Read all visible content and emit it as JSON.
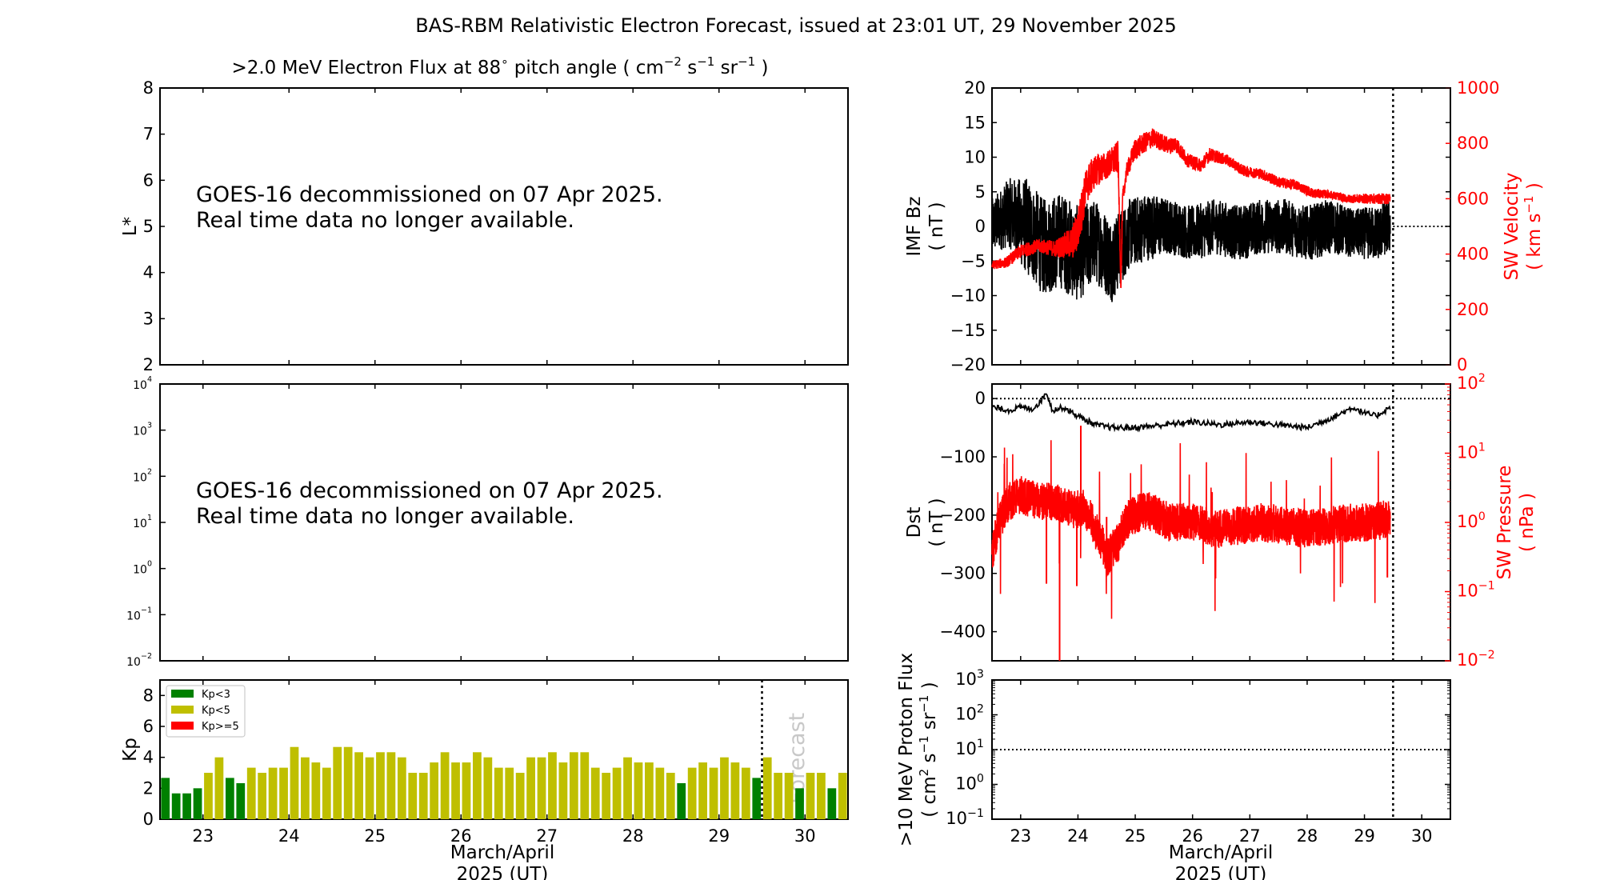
{
  "figure": {
    "title": "BAS-RBM Relativistic Electron Forecast, issued at 23:01 UT, 29 November 2025",
    "flux_title_prefix": ">2.0 MeV Electron Flux at 88",
    "flux_title_deg": "∘",
    "flux_title_mid": " pitch angle ( cm",
    "flux_title_sup1": "−2",
    "flux_title_s": " s",
    "flux_title_sup2": "−1",
    "flux_title_sr": " sr",
    "flux_title_sup3": "−1",
    "flux_title_end": " )",
    "notice_line1": "GOES-16 decommissioned on 07 Apr 2025.",
    "notice_line2": "Real time data no longer available.",
    "xlabel_line1": "March/April",
    "xlabel_line2": "2025 (UT)",
    "forecast_label": "Forecast",
    "colors": {
      "kp_low": "#008000",
      "kp_mid": "#bfbf00",
      "kp_high": "#ff0000",
      "sw": "#ff0000",
      "imf": "#000000"
    }
  },
  "chart_data": [
    {
      "id": "lstar",
      "type": "heatmap",
      "title": ">2.0 MeV Electron Flux at 88° pitch angle ( cm⁻² s⁻¹ sr⁻¹ )",
      "ylabel": "L*",
      "ylim": [
        2,
        8
      ],
      "yticks": [
        "2",
        "3",
        "4",
        "5",
        "6",
        "7",
        "8"
      ],
      "xlim": [
        22.5,
        30.5
      ],
      "annotation": "GOES-16 decommissioned on 07 Apr 2025. Real time data no longer available."
    },
    {
      "id": "flux",
      "type": "line",
      "yscale": "log",
      "ylim": [
        0.01,
        10000
      ],
      "yticks": [
        [
          "10",
          "−2"
        ],
        [
          "10",
          "−1"
        ],
        [
          "10",
          "0"
        ],
        [
          "10",
          "1"
        ],
        [
          "10",
          "2"
        ],
        [
          "10",
          "3"
        ],
        [
          "10",
          "4"
        ]
      ],
      "xlim": [
        22.5,
        30.5
      ],
      "annotation": "GOES-16 decommissioned on 07 Apr 2025. Real time data no longer available."
    },
    {
      "id": "kp",
      "type": "bar",
      "ylabel": "Kp",
      "ylim": [
        0,
        9
      ],
      "yticks": [
        "0",
        "2",
        "4",
        "6",
        "8"
      ],
      "xlim": [
        22.5,
        30.5
      ],
      "xticks": [
        "23",
        "24",
        "25",
        "26",
        "27",
        "28",
        "29",
        "30"
      ],
      "xlabel": "March/April 2025 (UT)",
      "legend": [
        "Kp<3",
        "Kp<5",
        "Kp>=5"
      ],
      "legend_loc": "upper-left",
      "now": 29.5,
      "bar_width_days": 0.1,
      "start": 22.5625,
      "step_days": 0.125,
      "values": [
        2.67,
        1.67,
        1.67,
        2.0,
        3.0,
        4.0,
        2.67,
        2.33,
        3.33,
        3.0,
        3.33,
        3.33,
        4.67,
        4.0,
        3.67,
        3.33,
        4.67,
        4.67,
        4.33,
        4.0,
        4.33,
        4.33,
        4.0,
        3.0,
        3.0,
        3.67,
        4.33,
        3.67,
        3.67,
        4.33,
        4.0,
        3.33,
        3.33,
        3.0,
        4.0,
        4.0,
        4.33,
        3.67,
        4.33,
        4.33,
        3.33,
        3.0,
        3.33,
        4.0,
        3.67,
        3.67,
        3.33,
        3.0,
        2.33,
        3.33,
        3.67,
        3.33,
        4.0,
        3.67,
        3.33,
        2.67,
        4.0,
        3.0,
        3.0,
        2.0,
        3.0,
        3.0,
        2.0,
        3.0
      ]
    },
    {
      "id": "imf_bz_sw_velocity",
      "type": "line",
      "xlim": [
        22.5,
        30.5
      ],
      "now": 29.5,
      "left_axis": {
        "label": "IMF Bz",
        "unit": "( nT )",
        "ylim": [
          -20,
          20
        ],
        "yticks": [
          "−20",
          "−15",
          "−10",
          "−5",
          "0",
          "5",
          "10",
          "15",
          "20"
        ]
      },
      "right_axis": {
        "label": "SW Velocity",
        "unit_a": "( km s",
        "unit_sup": "−1",
        "unit_b": " )",
        "ylim": [
          0,
          1000
        ],
        "yticks": [
          "0",
          "200",
          "400",
          "600",
          "800",
          "1000"
        ]
      },
      "series": [
        {
          "name": "IMF Bz",
          "axis": "left",
          "t": [
            22.5,
            22.8,
            23.1,
            23.4,
            23.7,
            24.0,
            24.3,
            24.6,
            24.9,
            25.2,
            25.6,
            26.0,
            26.4,
            26.8,
            27.2,
            27.6,
            28.0,
            28.4,
            28.8,
            29.2,
            29.45
          ],
          "v": [
            0,
            2,
            0,
            -3,
            -2,
            -4,
            -2,
            -5,
            -1,
            0,
            0,
            -1,
            0,
            -1,
            0,
            0,
            -1,
            0,
            -1,
            -1,
            0
          ],
          "spread": [
            4,
            5,
            7,
            7,
            7,
            7,
            6,
            6,
            5,
            5,
            4,
            4,
            4,
            4,
            4,
            4,
            4,
            4,
            3.5,
            4,
            4
          ]
        },
        {
          "name": "SW Velocity",
          "axis": "right",
          "t": [
            22.5,
            22.75,
            23.0,
            23.3,
            23.6,
            23.9,
            24.0,
            24.15,
            24.3,
            24.5,
            24.7,
            24.75,
            24.78,
            24.85,
            25.0,
            25.3,
            25.6,
            25.7,
            25.9,
            26.15,
            26.3,
            26.6,
            26.9,
            27.2,
            27.5,
            27.8,
            28.1,
            28.4,
            28.7,
            29.0,
            29.3,
            29.45
          ],
          "v": [
            360,
            370,
            410,
            430,
            420,
            440,
            490,
            650,
            700,
            720,
            750,
            280,
            600,
            700,
            780,
            820,
            790,
            800,
            740,
            720,
            760,
            740,
            700,
            690,
            660,
            650,
            620,
            615,
            600,
            600,
            600,
            600
          ],
          "spread": [
            15,
            20,
            25,
            25,
            30,
            60,
            80,
            70,
            60,
            50,
            60,
            20,
            30,
            30,
            40,
            35,
            30,
            30,
            25,
            25,
            25,
            20,
            20,
            20,
            20,
            18,
            18,
            15,
            15,
            18,
            20,
            20
          ]
        }
      ]
    },
    {
      "id": "dst_sw_pressure",
      "type": "line",
      "xlim": [
        22.5,
        30.5
      ],
      "now": 29.5,
      "left_axis": {
        "label": "Dst",
        "unit": "( nT )",
        "ylim": [
          -450,
          25
        ],
        "yticks": [
          "−400",
          "−300",
          "−200",
          "−100",
          "0"
        ]
      },
      "right_axis": {
        "label": "SW Pressure",
        "unit": "( nPa )",
        "yscale": "log",
        "ylim": [
          0.01,
          100
        ],
        "yticks": [
          [
            "10",
            "−2"
          ],
          [
            "10",
            "−1"
          ],
          [
            "10",
            "0"
          ],
          [
            "10",
            "1"
          ],
          [
            "10",
            "2"
          ]
        ]
      },
      "series": [
        {
          "name": "Dst",
          "axis": "left",
          "t": [
            22.5,
            22.8,
            23.0,
            23.2,
            23.35,
            23.45,
            23.55,
            23.75,
            24.0,
            24.3,
            24.6,
            25.0,
            25.5,
            26.0,
            26.5,
            27.0,
            27.5,
            28.0,
            28.5,
            28.8,
            29.0,
            29.2,
            29.45
          ],
          "v": [
            -15,
            -20,
            -15,
            -18,
            -5,
            12,
            -20,
            -15,
            -30,
            -45,
            -50,
            -50,
            -45,
            -40,
            -45,
            -40,
            -45,
            -50,
            -30,
            -15,
            -25,
            -30,
            -15
          ]
        },
        {
          "name": "SW Pressure",
          "axis": "right",
          "t": [
            22.5,
            22.6,
            22.8,
            23.0,
            23.3,
            23.6,
            23.9,
            24.1,
            24.3,
            24.5,
            24.7,
            24.9,
            25.2,
            25.6,
            26.0,
            26.4,
            26.8,
            27.2,
            27.6,
            28.0,
            28.4,
            28.8,
            29.2,
            29.45
          ],
          "v": [
            0.3,
            0.8,
            2.0,
            2.5,
            2.0,
            2.0,
            1.5,
            1.6,
            0.8,
            0.3,
            0.5,
            1.2,
            1.5,
            1.0,
            1.0,
            0.8,
            0.9,
            1.0,
            0.9,
            0.8,
            0.9,
            1.0,
            1.0,
            1.2
          ]
        }
      ]
    },
    {
      "id": "proton_flux",
      "type": "line",
      "ylabel": ">10 MeV Proton Flux",
      "yunit": "( cm² s⁻¹ sr⁻¹ )",
      "yscale": "log",
      "ylim": [
        0.1,
        1000
      ],
      "yticks": [
        [
          "10",
          "−1"
        ],
        [
          "10",
          "0"
        ],
        [
          "10",
          "1"
        ],
        [
          "10",
          "2"
        ],
        [
          "10",
          "3"
        ]
      ],
      "xlim": [
        22.5,
        30.5
      ],
      "xticks": [
        "23",
        "24",
        "25",
        "26",
        "27",
        "28",
        "29",
        "30"
      ],
      "xlabel": "March/April 2025 (UT)",
      "threshold": 10,
      "now": 29.5
    }
  ]
}
